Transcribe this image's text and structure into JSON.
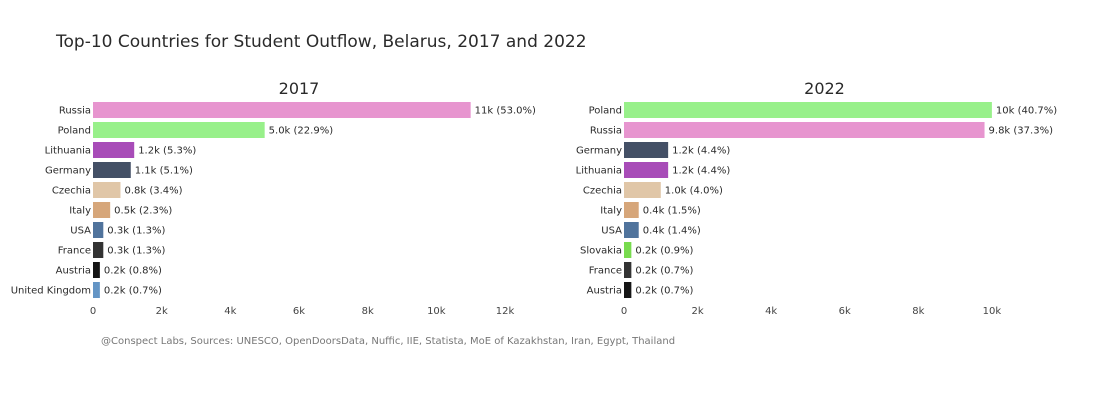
{
  "title": "Top-10 Countries for Student Outflow, Belarus, 2017 and 2022",
  "source": "@Conspect Labs, Sources: UNESCO, OpenDoorsData, Nuffic, IIE, Statista, MoE of Kazakhstan, Iran, Egypt, Thailand",
  "colors": {
    "Russia": "#e795cf",
    "Poland": "#98f08a",
    "Lithuania": "#a84cb8",
    "Germany": "#445066",
    "Czechia": "#e0c6a7",
    "Italy": "#d6a67a",
    "USA": "#50739c",
    "France": "#333333",
    "Austria": "#151515",
    "United Kingdom": "#6495c5",
    "Slovakia": "#78db4e"
  },
  "chart_data": [
    {
      "type": "bar",
      "orientation": "horizontal",
      "title": "2017",
      "categories": [
        "Russia",
        "Poland",
        "Lithuania",
        "Germany",
        "Czechia",
        "Italy",
        "USA",
        "France",
        "Austria",
        "United Kingdom"
      ],
      "values": [
        11000,
        5000,
        1200,
        1100,
        800,
        500,
        300,
        300,
        200,
        200
      ],
      "labels": [
        "11k (53.0%)",
        "5.0k (22.9%)",
        "1.2k (5.3%)",
        "1.1k (5.1%)",
        "0.8k (3.4%)",
        "0.5k (2.3%)",
        "0.3k (1.3%)",
        "0.3k (1.3%)",
        "0.2k (0.8%)",
        "0.2k (0.7%)"
      ],
      "xlim": [
        0,
        12000
      ],
      "xticks": [
        0,
        2000,
        4000,
        6000,
        8000,
        10000,
        12000
      ],
      "xtick_labels": [
        "0",
        "2k",
        "4k",
        "6k",
        "8k",
        "10k",
        "12k"
      ],
      "xlabel": "",
      "ylabel": ""
    },
    {
      "type": "bar",
      "orientation": "horizontal",
      "title": "2022",
      "categories": [
        "Poland",
        "Russia",
        "Germany",
        "Lithuania",
        "Czechia",
        "Italy",
        "USA",
        "Slovakia",
        "France",
        "Austria"
      ],
      "values": [
        10000,
        9800,
        1200,
        1200,
        1000,
        400,
        400,
        200,
        200,
        200
      ],
      "labels": [
        "10k (40.7%)",
        "9.8k (37.3%)",
        "1.2k (4.4%)",
        "1.2k (4.4%)",
        "1.0k (4.0%)",
        "0.4k (1.5%)",
        "0.4k (1.4%)",
        "0.2k (0.9%)",
        "0.2k (0.7%)",
        "0.2k (0.7%)"
      ],
      "xlim": [
        0,
        10900
      ],
      "xticks": [
        0,
        2000,
        4000,
        6000,
        8000,
        10000
      ],
      "xtick_labels": [
        "0",
        "2k",
        "4k",
        "6k",
        "8k",
        "10k"
      ],
      "xlabel": "",
      "ylabel": ""
    }
  ]
}
